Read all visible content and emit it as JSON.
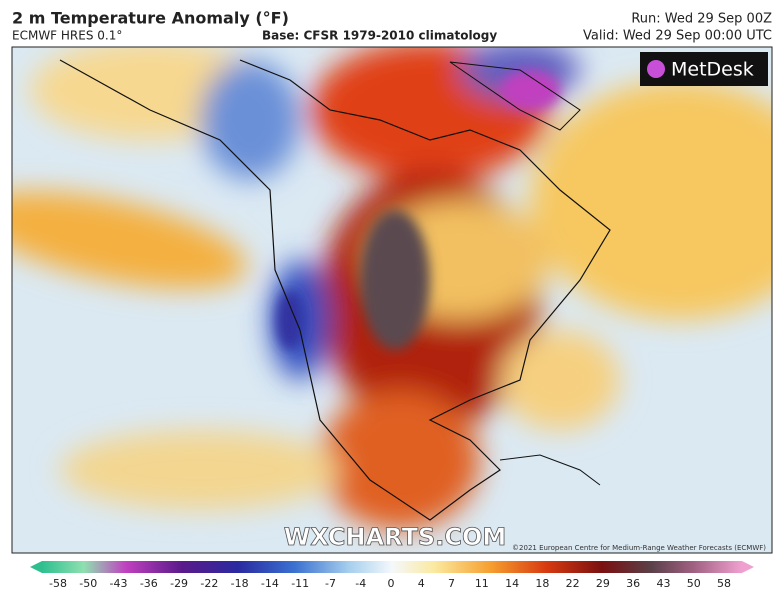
{
  "header": {
    "title": "2 m Temperature Anomaly (°F)",
    "model": "ECMWF HRES 0.1°",
    "base": "Base: CFSR 1979-2010 climatology",
    "run": "Run: Wed 29 Sep 00Z",
    "valid": "Valid: Wed 29 Sep 00:00 UTC"
  },
  "map": {
    "logo": "MetDesk",
    "watermark": "WXCHARTS.COM",
    "credit": "©2021 European Centre for Medium-Range Weather Forecasts (ECMWF)"
  },
  "colorbar": {
    "ticks": [
      -58,
      -50,
      -43,
      -36,
      -29,
      -22,
      -18,
      -14,
      -11,
      -7,
      -4,
      0,
      4,
      7,
      11,
      14,
      18,
      22,
      29,
      36,
      43,
      50,
      58
    ]
  }
}
